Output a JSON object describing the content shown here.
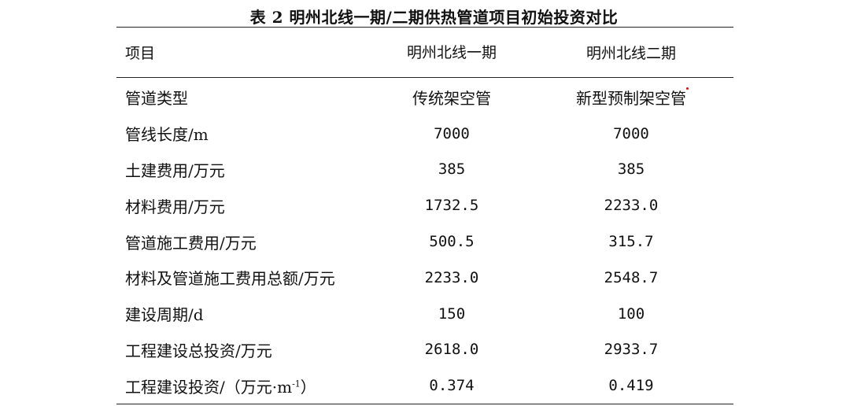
{
  "caption": "表 2 明州北线一期/二期供热管道项目初始投资对比",
  "header": {
    "col1": "项目",
    "col2": "明州北线一期",
    "col3": "明州北线二期"
  },
  "rows": [
    {
      "label": "管道类型",
      "phase1": "传统架空管",
      "phase2": "新型预制架空管"
    },
    {
      "label": "管线长度/m",
      "phase1": "7000",
      "phase2": "7000"
    },
    {
      "label": "土建费用/万元",
      "phase1": "385",
      "phase2": "385"
    },
    {
      "label": "材料费用/万元",
      "phase1": "1732.5",
      "phase2": "2233.0"
    },
    {
      "label": "管道施工费用/万元",
      "phase1": "500.5",
      "phase2": "315.7"
    },
    {
      "label": "材料及管道施工费用总额/万元",
      "phase1": "2233.0",
      "phase2": "2548.7"
    },
    {
      "label": "建设周期/d",
      "phase1": "150",
      "phase2": "100"
    },
    {
      "label": "工程建设总投资/万元",
      "phase1": "2618.0",
      "phase2": "2933.7"
    },
    {
      "label": "工程建设投资/（万元·m⁻¹）",
      "label_main": "工程建设投资/（万元·m",
      "label_sup": "-1",
      "label_end": "）",
      "phase1": "0.374",
      "phase2": "0.419"
    }
  ],
  "colors": {
    "text": "#111111",
    "rule": "#222222",
    "mark": "#d01010"
  }
}
